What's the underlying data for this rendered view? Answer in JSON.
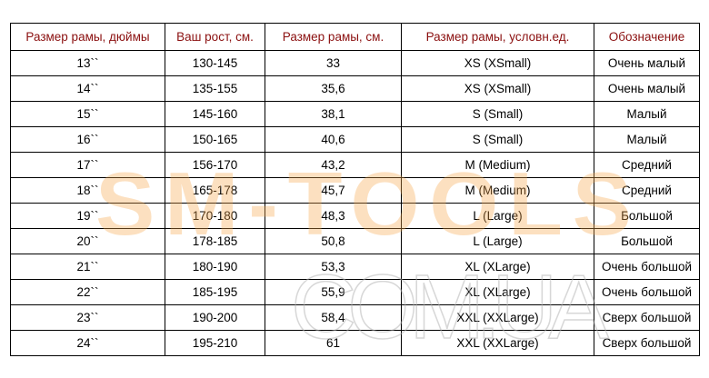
{
  "headers": [
    "Размер рамы, дюймы",
    "Ваш рост, см.",
    "Размер рамы, см.",
    "Размер рамы, условн.ед.",
    "Обозначение"
  ],
  "rows": [
    [
      "13``",
      "130-145",
      "33",
      "XS (XSmall)",
      "Очень малый"
    ],
    [
      "14``",
      "135-155",
      "35,6",
      "XS (XSmall)",
      "Очень малый"
    ],
    [
      "15``",
      "145-160",
      "38,1",
      "S (Small)",
      "Малый"
    ],
    [
      "16``",
      "150-165",
      "40,6",
      "S (Small)",
      "Малый"
    ],
    [
      "17``",
      "156-170",
      "43,2",
      "M (Medium)",
      "Средний"
    ],
    [
      "18``",
      "165-178",
      "45,7",
      "M (Medium)",
      "Средний"
    ],
    [
      "19``",
      "170-180",
      "48,3",
      "L (Large)",
      "Большой"
    ],
    [
      "20``",
      "178-185",
      "50,8",
      "L (Large)",
      "Большой"
    ],
    [
      "21``",
      "180-190",
      "53,3",
      "XL (XLarge)",
      "Очень большой"
    ],
    [
      "22``",
      "185-195",
      "55,9",
      "XL (XLarge)",
      "Очень большой"
    ],
    [
      "23``",
      "190-200",
      "58,4",
      "XXL (XXLarge)",
      "Сверх большой"
    ],
    [
      "24``",
      "195-210",
      "61",
      "XXL (XXLarge)",
      "Сверх большой"
    ]
  ],
  "colors": {
    "header_text": "#8b1010",
    "watermark_orange": "#f5a54a",
    "watermark_gray": "#c8c8c8"
  },
  "watermark": {
    "line1": "SM-TOOLS",
    "line2": "COM.UA"
  }
}
